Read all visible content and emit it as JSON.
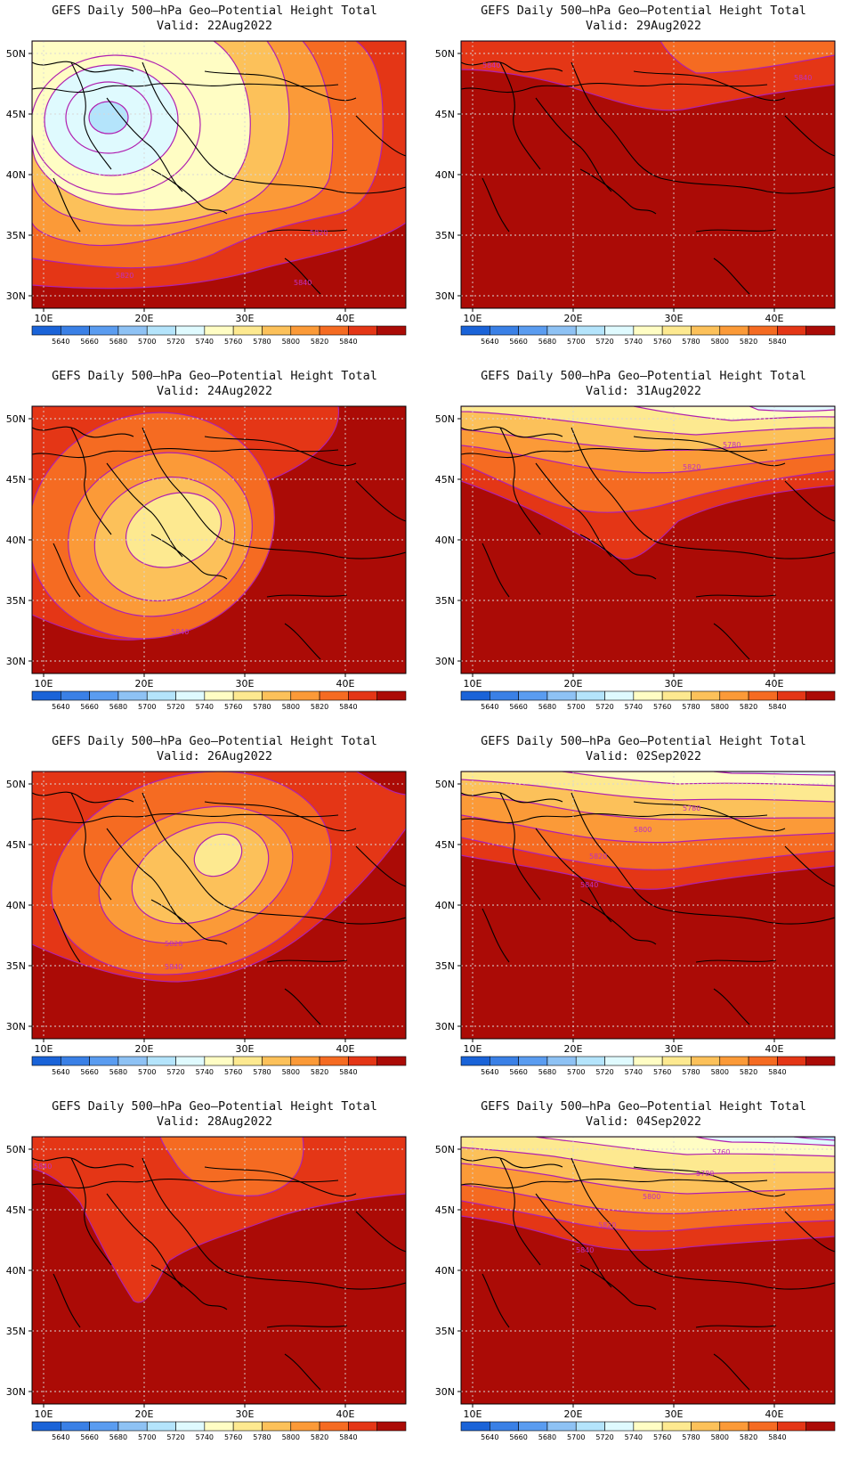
{
  "levels": [
    "5640",
    "5660",
    "5680",
    "5700",
    "5720",
    "5740",
    "5760",
    "5780",
    "5800",
    "5820",
    "5840"
  ],
  "colors": [
    "#1a63d8",
    "#3a80e6",
    "#5a9cf0",
    "#8ec2f4",
    "#b4e4fb",
    "#dffafe",
    "#fffdc4",
    "#fde990",
    "#fcc15a",
    "#fb9a38",
    "#f56b22",
    "#e43616",
    "#ab0b06"
  ],
  "lat_labels": [
    "50N",
    "45N",
    "40N",
    "35N",
    "30N"
  ],
  "lon_labels": [
    "10E",
    "20E",
    "30E",
    "40E"
  ],
  "panels": [
    {
      "title": "GEFS Daily 500–hPa Geo–Potential Height Total",
      "valid": "Valid: 22Aug2022",
      "contour_labels": [
        "5820",
        "5840",
        "5820"
      ]
    },
    {
      "title": "GEFS Daily 500–hPa Geo–Potential Height Total",
      "valid": "Valid: 29Aug2022",
      "contour_labels": [
        "5840",
        "5840"
      ]
    },
    {
      "title": "GEFS Daily 500–hPa Geo–Potential Height Total",
      "valid": "Valid: 24Aug2022",
      "contour_labels": [
        "5840"
      ]
    },
    {
      "title": "GEFS Daily 500–hPa Geo–Potential Height Total",
      "valid": "Valid: 31Aug2022",
      "contour_labels": [
        "5780",
        "5820"
      ]
    },
    {
      "title": "GEFS Daily 500–hPa Geo–Potential Height Total",
      "valid": "Valid: 26Aug2022",
      "contour_labels": [
        "5820",
        "5840"
      ]
    },
    {
      "title": "GEFS Daily 500–hPa Geo–Potential Height Total",
      "valid": "Valid: 02Sep2022",
      "contour_labels": [
        "5780",
        "5800",
        "5820",
        "5840"
      ]
    },
    {
      "title": "GEFS Daily 500–hPa Geo–Potential Height Total",
      "valid": "Valid: 28Aug2022",
      "contour_labels": [
        "5840"
      ]
    },
    {
      "title": "GEFS Daily 500–hPa Geo–Potential Height Total",
      "valid": "Valid: 04Sep2022",
      "contour_labels": [
        "5760",
        "5780",
        "5800",
        "5820",
        "5840"
      ]
    }
  ]
}
